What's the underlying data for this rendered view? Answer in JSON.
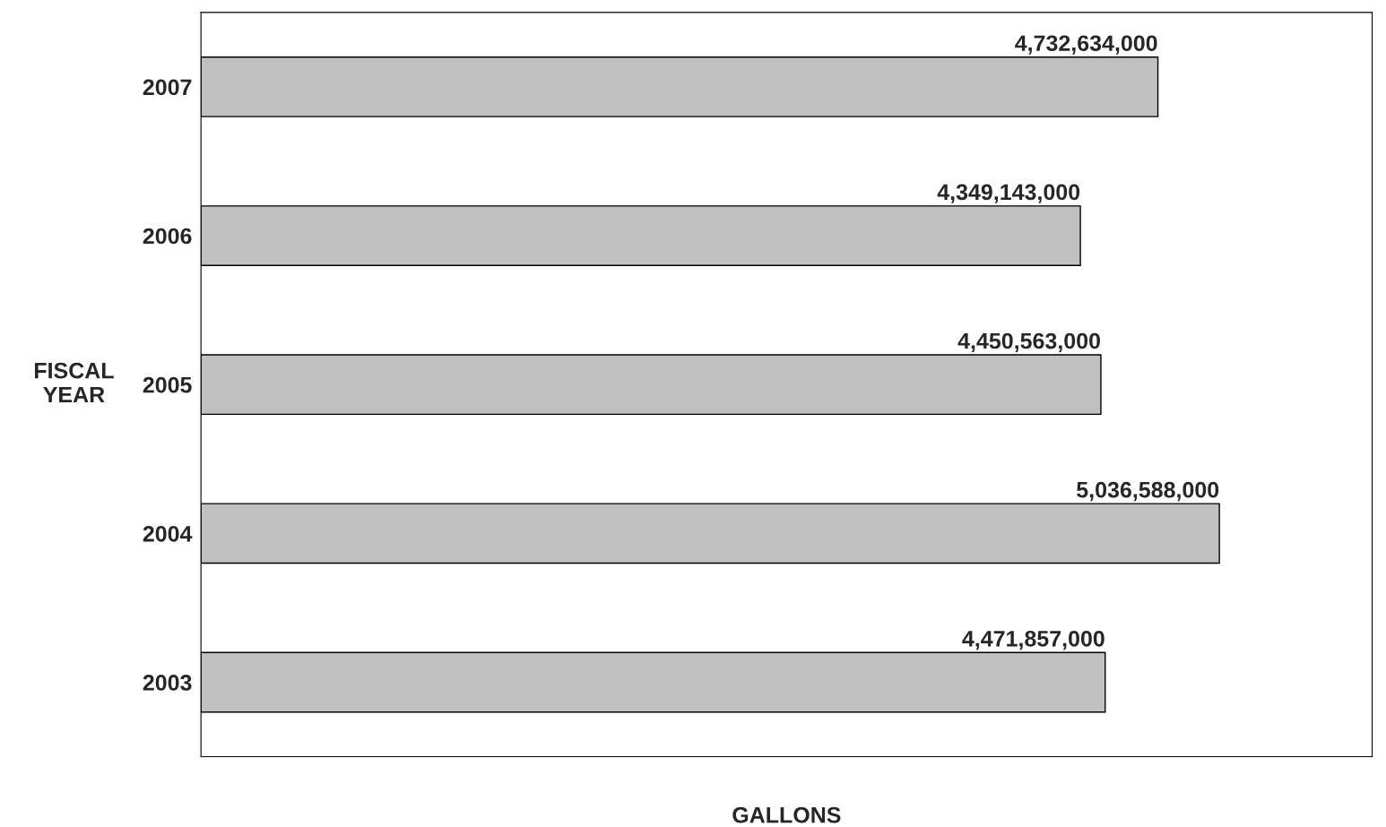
{
  "chart_data": {
    "type": "bar",
    "orientation": "horizontal",
    "xlabel": "GALLONS",
    "ylabel": "FISCAL\nYEAR",
    "categories": [
      "2007",
      "2006",
      "2005",
      "2004",
      "2003"
    ],
    "values": [
      4732634000,
      4349143000,
      4450563000,
      5036588000,
      4471857000
    ],
    "color": "#c0c0c0",
    "value_labels": [
      "4,732,634,000",
      "4,349,143,000",
      "4,450,563,000",
      "5,036,588,000",
      "4,471,857,000"
    ],
    "grid": false,
    "legend": false,
    "tick_labels": "y"
  }
}
